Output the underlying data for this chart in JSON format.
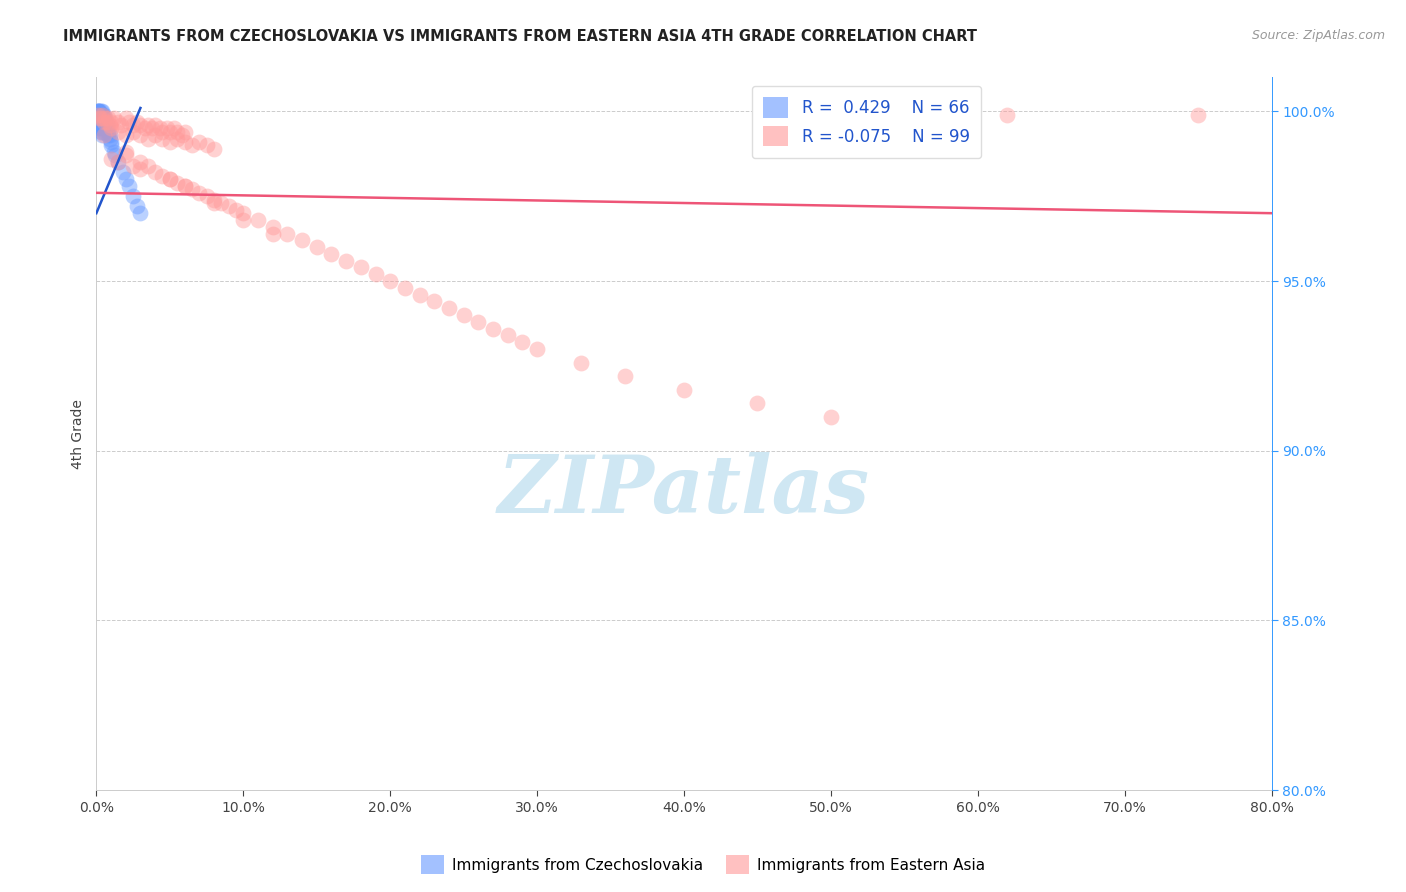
{
  "title": "IMMIGRANTS FROM CZECHOSLOVAKIA VS IMMIGRANTS FROM EASTERN ASIA 4TH GRADE CORRELATION CHART",
  "source": "Source: ZipAtlas.com",
  "ylabel": "4th Grade",
  "ytick_values": [
    1.0,
    0.95,
    0.9,
    0.85,
    0.8
  ],
  "xmin": 0.0,
  "xmax": 0.8,
  "ymin": 0.8,
  "ymax": 1.01,
  "legend_blue_r": "R =  0.429",
  "legend_blue_n": "N = 66",
  "legend_pink_r": "R = -0.075",
  "legend_pink_n": "N = 99",
  "blue_color": "#6699FF",
  "pink_color": "#FF9999",
  "blue_line_color": "#2255CC",
  "pink_line_color": "#EE5577",
  "watermark_color": "#BBDDEE",
  "blue_scatter_x": [
    0.001,
    0.001,
    0.001,
    0.001,
    0.001,
    0.001,
    0.001,
    0.001,
    0.001,
    0.001,
    0.002,
    0.002,
    0.002,
    0.002,
    0.002,
    0.002,
    0.002,
    0.002,
    0.002,
    0.002,
    0.003,
    0.003,
    0.003,
    0.003,
    0.003,
    0.003,
    0.003,
    0.003,
    0.003,
    0.003,
    0.004,
    0.004,
    0.004,
    0.004,
    0.004,
    0.004,
    0.004,
    0.004,
    0.004,
    0.004,
    0.005,
    0.005,
    0.005,
    0.005,
    0.005,
    0.005,
    0.006,
    0.006,
    0.006,
    0.007,
    0.007,
    0.008,
    0.008,
    0.009,
    0.009,
    0.01,
    0.01,
    0.012,
    0.013,
    0.015,
    0.018,
    0.02,
    0.022,
    0.025,
    0.028,
    0.03
  ],
  "blue_scatter_y": [
    1.0,
    1.0,
    1.0,
    0.999,
    0.999,
    0.999,
    0.998,
    0.998,
    0.997,
    0.996,
    1.0,
    1.0,
    0.999,
    0.999,
    0.998,
    0.998,
    0.997,
    0.997,
    0.996,
    0.995,
    1.0,
    0.999,
    0.999,
    0.998,
    0.998,
    0.997,
    0.997,
    0.996,
    0.995,
    0.994,
    1.0,
    0.999,
    0.999,
    0.998,
    0.997,
    0.997,
    0.996,
    0.995,
    0.994,
    0.993,
    0.999,
    0.998,
    0.997,
    0.996,
    0.995,
    0.994,
    0.997,
    0.996,
    0.995,
    0.996,
    0.995,
    0.994,
    0.993,
    0.993,
    0.992,
    0.991,
    0.99,
    0.988,
    0.987,
    0.985,
    0.982,
    0.98,
    0.978,
    0.975,
    0.972,
    0.97
  ],
  "pink_scatter_x": [
    0.001,
    0.002,
    0.003,
    0.004,
    0.005,
    0.006,
    0.007,
    0.008,
    0.009,
    0.01,
    0.012,
    0.015,
    0.017,
    0.02,
    0.022,
    0.025,
    0.028,
    0.03,
    0.033,
    0.035,
    0.038,
    0.04,
    0.043,
    0.045,
    0.048,
    0.05,
    0.053,
    0.055,
    0.058,
    0.06,
    0.005,
    0.01,
    0.015,
    0.02,
    0.025,
    0.03,
    0.035,
    0.04,
    0.045,
    0.05,
    0.055,
    0.06,
    0.065,
    0.07,
    0.075,
    0.08,
    0.01,
    0.015,
    0.02,
    0.025,
    0.03,
    0.035,
    0.04,
    0.045,
    0.05,
    0.055,
    0.06,
    0.065,
    0.07,
    0.075,
    0.08,
    0.085,
    0.09,
    0.095,
    0.1,
    0.11,
    0.12,
    0.13,
    0.14,
    0.15,
    0.16,
    0.17,
    0.18,
    0.19,
    0.2,
    0.21,
    0.22,
    0.23,
    0.24,
    0.25,
    0.26,
    0.27,
    0.28,
    0.29,
    0.3,
    0.33,
    0.36,
    0.4,
    0.45,
    0.5,
    0.02,
    0.03,
    0.05,
    0.06,
    0.08,
    0.1,
    0.12,
    0.59,
    0.62,
    0.75
  ],
  "pink_scatter_y": [
    0.999,
    0.998,
    0.998,
    0.999,
    0.997,
    0.998,
    0.997,
    0.998,
    0.996,
    0.997,
    0.998,
    0.997,
    0.996,
    0.998,
    0.997,
    0.996,
    0.997,
    0.996,
    0.995,
    0.996,
    0.995,
    0.996,
    0.995,
    0.994,
    0.995,
    0.994,
    0.995,
    0.994,
    0.993,
    0.994,
    0.993,
    0.995,
    0.994,
    0.993,
    0.994,
    0.993,
    0.992,
    0.993,
    0.992,
    0.991,
    0.992,
    0.991,
    0.99,
    0.991,
    0.99,
    0.989,
    0.986,
    0.985,
    0.987,
    0.984,
    0.983,
    0.984,
    0.982,
    0.981,
    0.98,
    0.979,
    0.978,
    0.977,
    0.976,
    0.975,
    0.974,
    0.973,
    0.972,
    0.971,
    0.97,
    0.968,
    0.966,
    0.964,
    0.962,
    0.96,
    0.958,
    0.956,
    0.954,
    0.952,
    0.95,
    0.948,
    0.946,
    0.944,
    0.942,
    0.94,
    0.938,
    0.936,
    0.934,
    0.932,
    0.93,
    0.926,
    0.922,
    0.918,
    0.914,
    0.91,
    0.988,
    0.985,
    0.98,
    0.978,
    0.973,
    0.968,
    0.964,
    0.999,
    0.999,
    0.999
  ],
  "blue_line_x0": 0.0,
  "blue_line_x1": 0.03,
  "blue_line_y0": 0.97,
  "blue_line_y1": 1.001,
  "pink_line_x0": 0.0,
  "pink_line_x1": 0.8,
  "pink_line_y0": 0.976,
  "pink_line_y1": 0.97
}
